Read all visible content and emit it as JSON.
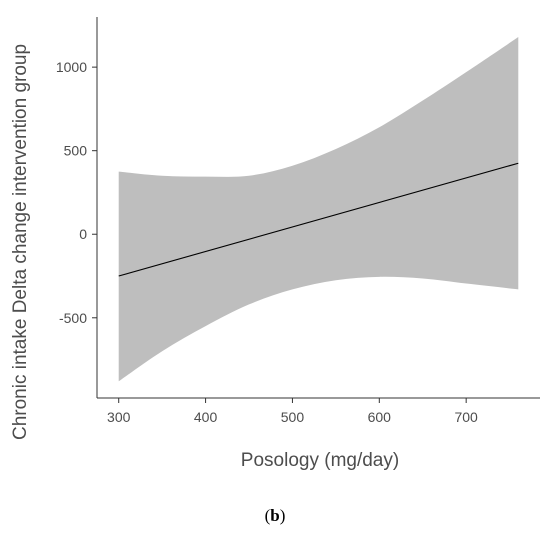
{
  "chart_data": {
    "type": "line",
    "title": "",
    "xlabel": "Posology (mg/day)",
    "ylabel": "Chronic intake Delta change intervention group",
    "x_ticks": [
      300,
      400,
      500,
      600,
      700
    ],
    "y_ticks": [
      -500,
      0,
      500,
      1000
    ],
    "xlim": [
      275,
      785
    ],
    "ylim": [
      -980,
      1300
    ],
    "grid": false,
    "legend": "none",
    "series": [
      {
        "type": "line",
        "x": [
          300,
          760
        ],
        "y": [
          -250,
          425
        ],
        "color": "#000000"
      },
      {
        "type": "confidence_band",
        "x": [
          300,
          350,
          400,
          450,
          500,
          550,
          600,
          650,
          700,
          760
        ],
        "upper": [
          375,
          350,
          345,
          350,
          410,
          510,
          640,
          800,
          970,
          1180
        ],
        "lower": [
          -880,
          -700,
          -550,
          -420,
          -330,
          -275,
          -255,
          -265,
          -295,
          -330
        ],
        "color": "#bebebe"
      }
    ]
  },
  "caption": {
    "open": "(",
    "letter": "b",
    "close": ")"
  }
}
